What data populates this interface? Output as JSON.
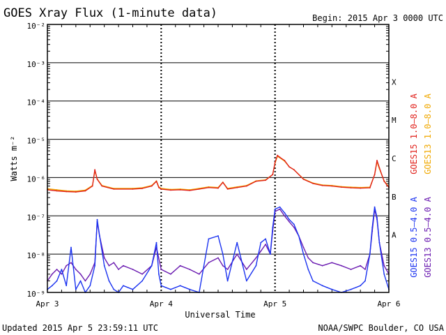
{
  "header": {
    "title": "GOES Xray Flux (1-minute data)",
    "begin": "Begin:  2015 Apr 3 0000 UTC"
  },
  "footer": {
    "updated": "Updated 2015 Apr  5 23:59:11 UTC",
    "credit": "NOAA/SWPC Boulder, CO USA"
  },
  "colors": {
    "goes15_long": "#e0201a",
    "goes13_long": "#f0a800",
    "goes15_short": "#1a32f0",
    "goes13_short": "#6a1ab0",
    "grid": "#000000"
  },
  "chart_data": {
    "type": "line",
    "title": "GOES Xray Flux (1-minute data)",
    "xlabel": "Universal Time",
    "ylabel": "Watts m⁻²",
    "yscale": "log",
    "ylim": [
      1e-09,
      0.01
    ],
    "y_tick_labels": [
      "10⁻⁹",
      "10⁻⁸",
      "10⁻⁷",
      "10⁻⁶",
      "10⁻⁵",
      "10⁻⁴",
      "10⁻³",
      "10⁻²"
    ],
    "x_tick_labels": [
      "Apr 3",
      "Apr 4",
      "Apr 5",
      "Apr 6"
    ],
    "xlim": [
      0,
      72
    ],
    "flare_classes": [
      {
        "label": "X",
        "value": 0.0001
      },
      {
        "label": "M",
        "value": 1e-05
      },
      {
        "label": "C",
        "value": 1e-06
      },
      {
        "label": "B",
        "value": 1e-07
      },
      {
        "label": "A",
        "value": 1e-08
      }
    ],
    "series": [
      {
        "name": "GOES15 1.0–8.0 A",
        "color": "#e0201a",
        "x": [
          0,
          2,
          4,
          6,
          8,
          9.5,
          10,
          10.5,
          11.5,
          14,
          18,
          20,
          22,
          23,
          23.5,
          24,
          26,
          28,
          30,
          32,
          34,
          36,
          37,
          38,
          40,
          42,
          44,
          46,
          47.5,
          48,
          48.5,
          49,
          50,
          51,
          52,
          54,
          56,
          58,
          60,
          62,
          64,
          66,
          68,
          69,
          69.5,
          70,
          71,
          72
        ],
        "y": [
          4.8e-07,
          4.5e-07,
          4.3e-07,
          4.2e-07,
          4.5e-07,
          6e-07,
          1.6e-06,
          9e-07,
          6e-07,
          5e-07,
          5e-07,
          5.2e-07,
          6e-07,
          8e-07,
          5.5e-07,
          5e-07,
          4.7e-07,
          4.8e-07,
          4.6e-07,
          5e-07,
          5.5e-07,
          5.3e-07,
          7.5e-07,
          5e-07,
          5.5e-07,
          6e-07,
          8e-07,
          8.5e-07,
          1.2e-06,
          2.5e-06,
          3.8e-06,
          3.4e-06,
          2.8e-06,
          1.9e-06,
          1.6e-06,
          9e-07,
          7e-07,
          6.2e-07,
          6e-07,
          5.6e-07,
          5.4e-07,
          5.3e-07,
          5.4e-07,
          1.2e-06,
          2.8e-06,
          1.8e-06,
          8e-07,
          5.5e-07
        ]
      },
      {
        "name": "GOES13 1.0–8.0 A",
        "color": "#f0a800",
        "x": [
          0,
          2,
          4,
          6,
          8,
          9.5,
          10,
          10.5,
          11.5,
          14,
          18,
          20,
          22,
          23,
          23.5,
          24,
          26,
          28,
          30,
          32,
          34,
          36,
          37,
          38,
          40,
          42,
          44,
          46,
          47.5,
          48,
          48.5,
          49,
          50,
          51,
          52,
          54,
          56,
          58,
          60,
          62,
          64,
          66,
          68,
          69,
          69.5,
          70,
          71,
          72
        ],
        "y": [
          5.1e-07,
          4.8e-07,
          4.5e-07,
          4.4e-07,
          4.7e-07,
          6.2e-07,
          1.5e-06,
          9.2e-07,
          6.2e-07,
          5.2e-07,
          5.2e-07,
          5.4e-07,
          6.2e-07,
          8.2e-07,
          5.7e-07,
          5.2e-07,
          4.9e-07,
          5e-07,
          4.8e-07,
          5.2e-07,
          5.7e-07,
          5.5e-07,
          7.6e-07,
          5.2e-07,
          5.7e-07,
          6.2e-07,
          8.2e-07,
          8.7e-07,
          1.2e-06,
          2.4e-06,
          3.6e-06,
          3.3e-06,
          2.7e-06,
          1.9e-06,
          1.6e-06,
          9.2e-07,
          7.2e-07,
          6.4e-07,
          6.2e-07,
          5.8e-07,
          5.6e-07,
          5.5e-07,
          5.6e-07,
          1.2e-06,
          2.6e-06,
          1.7e-06,
          8.2e-07,
          5.7e-07
        ]
      },
      {
        "name": "GOES15 0.5–4.0 A",
        "color": "#1a32f0",
        "x": [
          0,
          1,
          2,
          3,
          4,
          5,
          6,
          7,
          8,
          9,
          10,
          10.5,
          11,
          12,
          13,
          14,
          15,
          16,
          18,
          20,
          22,
          23,
          23.5,
          24,
          26,
          28,
          30,
          32,
          34,
          36,
          37,
          38,
          40,
          42,
          44,
          45,
          46,
          47,
          47.5,
          48,
          49,
          50,
          51,
          52,
          53,
          54,
          55,
          56,
          58,
          60,
          62,
          64,
          66,
          67,
          68,
          68.5,
          69,
          69.5,
          70,
          71,
          72
        ],
        "y": [
          1.2e-09,
          1.5e-09,
          2e-09,
          4e-09,
          1.5e-09,
          1.5e-08,
          1.2e-09,
          2e-09,
          1e-09,
          1.5e-09,
          5e-09,
          8e-08,
          3e-08,
          5e-09,
          2e-09,
          1.2e-09,
          1e-09,
          1.5e-09,
          1.2e-09,
          2e-09,
          5e-09,
          2e-08,
          3e-09,
          1.5e-09,
          1.2e-09,
          1.5e-09,
          1.2e-09,
          1e-09,
          2.5e-08,
          3e-08,
          1e-08,
          2e-09,
          2e-08,
          2e-09,
          5e-09,
          2e-08,
          2.5e-08,
          1e-08,
          5e-08,
          1.5e-07,
          1.7e-07,
          1.2e-07,
          8e-08,
          6e-08,
          3e-08,
          1e-08,
          4e-09,
          2e-09,
          1.5e-09,
          1.2e-09,
          1e-09,
          1.2e-09,
          1.5e-09,
          2e-09,
          1e-08,
          5e-08,
          1.7e-07,
          9e-08,
          2e-08,
          3e-09,
          1.2e-09
        ]
      },
      {
        "name": "GOES13 0.5–4.0 A",
        "color": "#6a1ab0",
        "x": [
          0,
          1,
          2,
          3,
          4,
          5,
          6,
          7,
          8,
          9,
          10,
          10.5,
          11,
          12,
          13,
          14,
          15,
          16,
          18,
          20,
          22,
          23,
          24,
          26,
          28,
          30,
          32,
          34,
          36,
          37,
          38,
          40,
          42,
          44,
          45,
          46,
          47,
          47.5,
          48,
          49,
          50,
          51,
          52,
          53,
          54,
          55,
          56,
          58,
          60,
          62,
          64,
          66,
          67,
          68,
          68.5,
          69,
          69.5,
          70,
          71,
          72
        ],
        "y": [
          2e-09,
          3e-09,
          4e-09,
          3e-09,
          5e-09,
          6e-09,
          4e-09,
          3e-09,
          2e-09,
          3e-09,
          6e-09,
          7e-08,
          3e-08,
          8e-09,
          5e-09,
          6e-09,
          4e-09,
          5e-09,
          4e-09,
          3e-09,
          5e-09,
          1.5e-08,
          4e-09,
          3e-09,
          5e-09,
          4e-09,
          3e-09,
          6e-09,
          8e-09,
          5e-09,
          4e-09,
          1e-08,
          4e-09,
          8e-09,
          1.2e-08,
          1.8e-08,
          1e-08,
          4e-08,
          1.3e-07,
          1.5e-07,
          1e-07,
          7e-08,
          5e-08,
          3e-08,
          1.5e-08,
          8e-09,
          6e-09,
          5e-09,
          6e-09,
          5e-09,
          4e-09,
          5e-09,
          4e-09,
          1e-08,
          4e-08,
          1.5e-07,
          8e-08,
          2e-08,
          5e-09,
          3e-09
        ]
      }
    ]
  }
}
